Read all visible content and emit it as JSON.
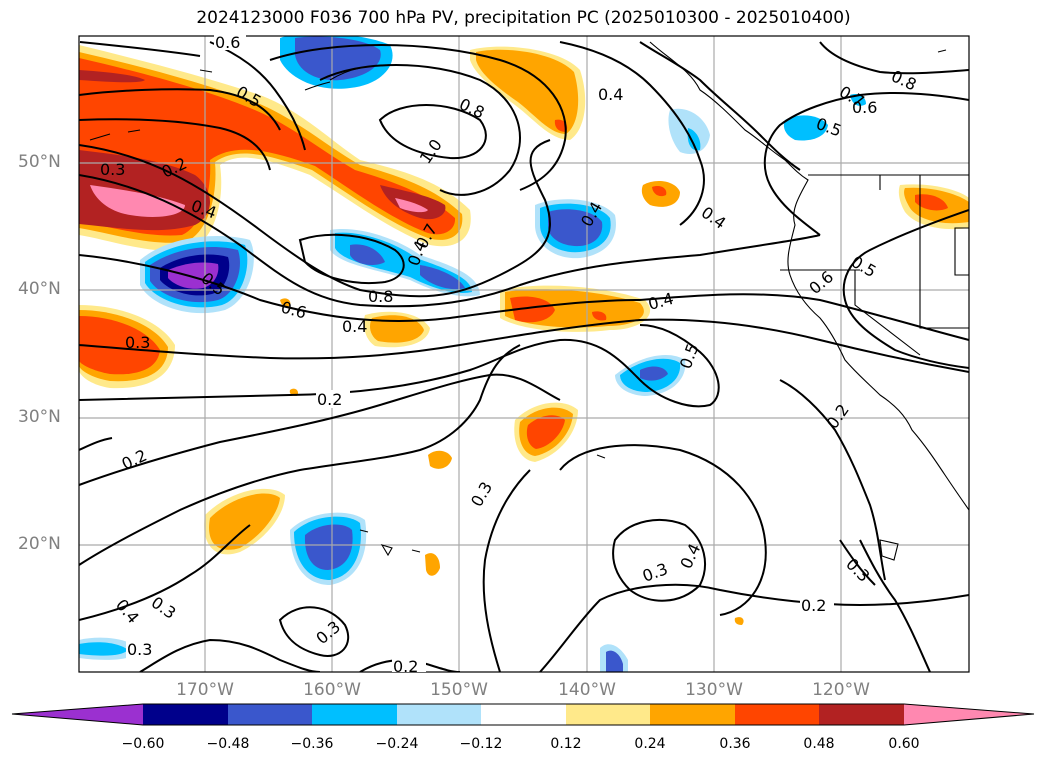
{
  "title": "2024123000 F036 700 hPa PV, precipitation PC (2025010300 - 2025010400)",
  "map": {
    "latitude_labels": [
      "50°N",
      "40°N",
      "30°N",
      "20°N"
    ],
    "longitude_labels": [
      "170°W",
      "160°W",
      "150°W",
      "140°W",
      "130°W",
      "120°W"
    ],
    "contour_labels": [
      "0.6",
      "0.5",
      "0.8",
      "1.0",
      "0.4",
      "0.4",
      "0.7",
      "0.8",
      "0.5",
      "0.6",
      "0.3",
      "0.2",
      "0.4",
      "0.5",
      "0.4",
      "0.6",
      "0.8",
      "0.4",
      "0.7",
      "0.4",
      "0.4",
      "0.5",
      "0.6",
      "0.5",
      "0.2",
      "0.2",
      "0.2",
      "0.3",
      "0.3",
      "0.4",
      "0.3",
      "0.2",
      "0.3",
      "0.4",
      "0.3",
      "0.3",
      "0.3",
      "0.2"
    ]
  },
  "colorbar": {
    "tick_labels": [
      "−0.60",
      "−0.48",
      "−0.36",
      "−0.24",
      "−0.12",
      "0.12",
      "0.24",
      "0.36",
      "0.48",
      "0.60"
    ],
    "colors": [
      "#9b30d0",
      "#00008b",
      "#3a57cc",
      "#00bfff",
      "#b0e2fa",
      "#ffffff",
      "#ffe98a",
      "#ffa500",
      "#ff4500",
      "#b22222",
      "#ff88b0"
    ]
  }
}
